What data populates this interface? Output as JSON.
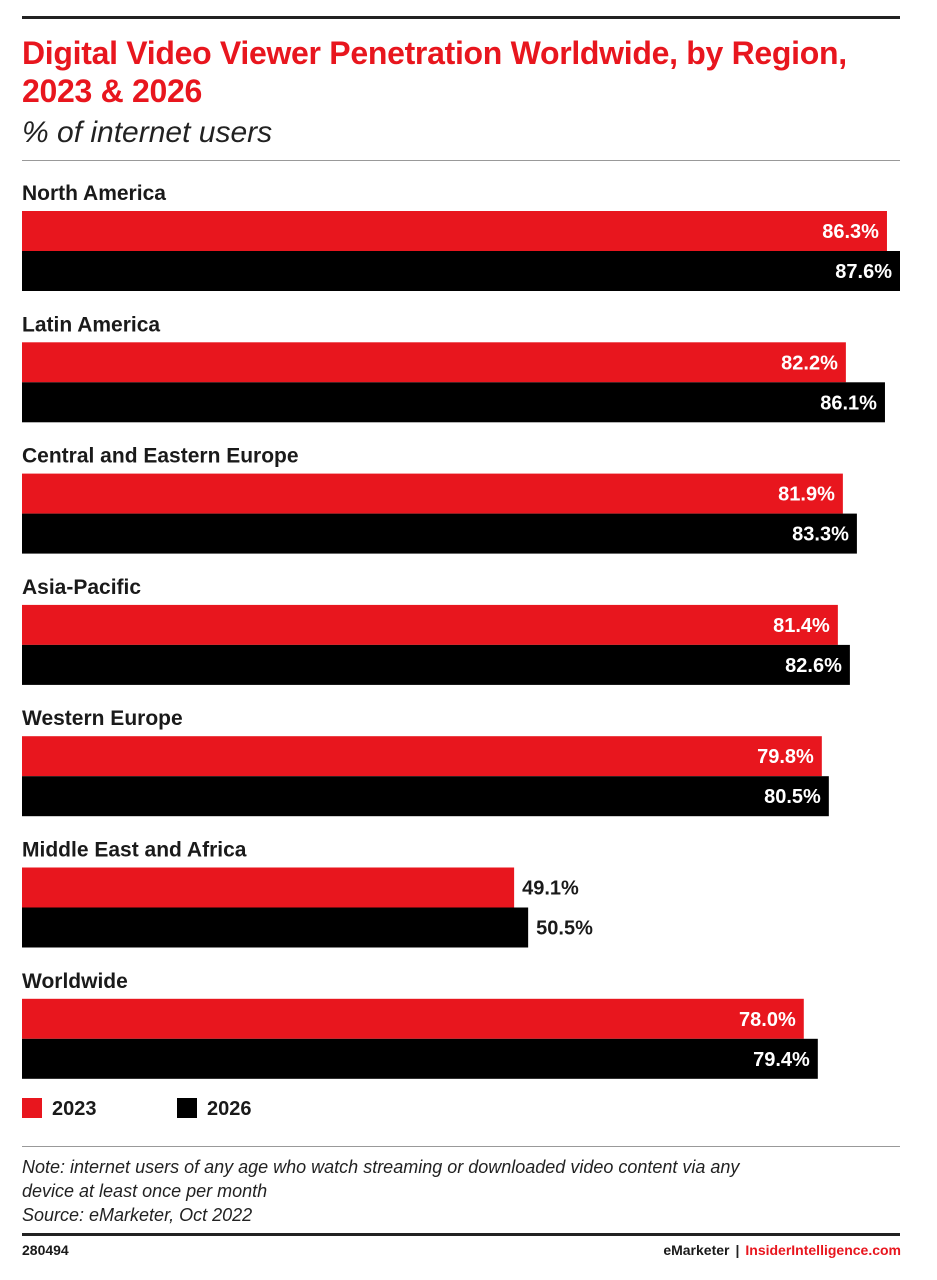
{
  "header": {
    "title": "Digital Video Viewer Penetration Worldwide, by Region, 2023 & 2026",
    "subtitle": "% of internet users"
  },
  "legend": {
    "items": [
      {
        "label": "2023",
        "color": "#e8161e"
      },
      {
        "label": "2026",
        "color": "#000000"
      }
    ]
  },
  "notes": {
    "note_line1": "Note: internet users of any age who watch streaming or downloaded video content via any",
    "note_line2": "device at least once per month",
    "source": "Source: eMarketer, Oct 2022"
  },
  "footer": {
    "chart_id": "280494",
    "brand": "eMarketer",
    "separator": "|",
    "site": "InsiderIntelligence.com"
  },
  "colors": {
    "accent_red": "#e8161e",
    "series_black": "#000000"
  },
  "chart_data": {
    "type": "bar",
    "orientation": "horizontal",
    "title": "Digital Video Viewer Penetration Worldwide, by Region, 2023 & 2026",
    "subtitle": "% of internet users",
    "categories": [
      "North America",
      "Latin America",
      "Central and Eastern Europe",
      "Asia-Pacific",
      "Western Europe",
      "Middle East and Africa",
      "Worldwide"
    ],
    "series": [
      {
        "name": "2023",
        "color": "#e8161e",
        "values": [
          86.3,
          82.2,
          81.9,
          81.4,
          79.8,
          49.1,
          78.0
        ],
        "labels": [
          "86.3%",
          "82.2%",
          "81.9%",
          "81.4%",
          "79.8%",
          "49.1%",
          "78.0%"
        ]
      },
      {
        "name": "2026",
        "color": "#000000",
        "values": [
          87.6,
          86.1,
          83.3,
          82.6,
          80.5,
          50.5,
          79.4
        ],
        "labels": [
          "87.6%",
          "86.1%",
          "83.3%",
          "82.6%",
          "80.5%",
          "50.5%",
          "79.4%"
        ]
      }
    ],
    "xlim": [
      0,
      87.6
    ],
    "grid": false,
    "legend_position": "bottom-left"
  }
}
